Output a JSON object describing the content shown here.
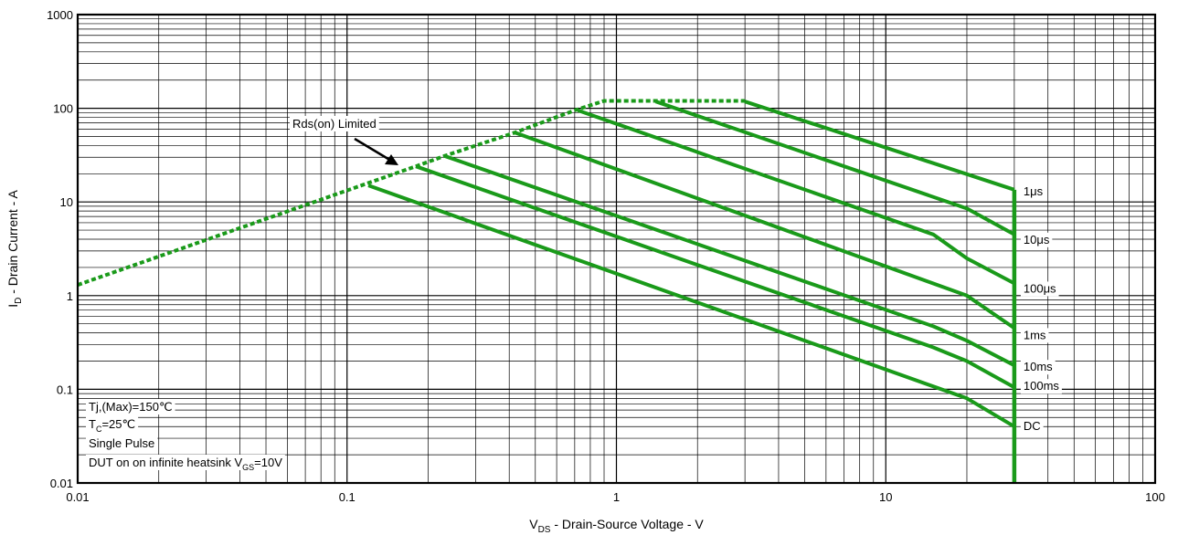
{
  "chart_data": {
    "type": "line",
    "title": "",
    "x_scale": "log",
    "y_scale": "log",
    "xlim": [
      0.01,
      100
    ],
    "ylim": [
      0.01,
      1000
    ],
    "grid": true,
    "x_ticks": [
      "0.01",
      "0.1",
      "1",
      "10",
      "100"
    ],
    "y_ticks": [
      "0.01",
      "0.1",
      "1",
      "10",
      "100",
      "1000"
    ],
    "xlabel": {
      "main": "V",
      "sub": "DS",
      "rest": " - Drain-Source Voltage - V"
    },
    "ylabel": {
      "main": "I",
      "sub": "D",
      "rest": " - Drain Current - A"
    },
    "rds_limit": {
      "label": "Rds(on) Limited",
      "style": "dotted",
      "x": [
        0.01,
        0.18,
        0.23,
        0.42,
        0.7,
        0.9,
        3.0
      ],
      "y": [
        1.3,
        24,
        31,
        55,
        95,
        120,
        120
      ]
    },
    "vds_limit": {
      "x": 30,
      "y": [
        0.01,
        13.5
      ],
      "style": "solid"
    },
    "series": [
      {
        "name": "1μs",
        "x": [
          3.0,
          30
        ],
        "y": [
          118,
          13.5
        ]
      },
      {
        "name": "10μs",
        "x": [
          1.4,
          20,
          30
        ],
        "y": [
          118,
          8.5,
          4.5
        ]
      },
      {
        "name": "100μs",
        "x": [
          0.72,
          15,
          20,
          30
        ],
        "y": [
          95,
          4.5,
          2.5,
          1.35
        ]
      },
      {
        "name": "1ms",
        "x": [
          0.42,
          20,
          30
        ],
        "y": [
          55,
          1.0,
          0.45
        ]
      },
      {
        "name": "10ms",
        "x": [
          0.23,
          15,
          20,
          30
        ],
        "y": [
          31,
          0.47,
          0.33,
          0.18
        ]
      },
      {
        "name": "100ms",
        "x": [
          0.18,
          15,
          20,
          30
        ],
        "y": [
          24,
          0.28,
          0.2,
          0.105
        ]
      },
      {
        "name": "DC",
        "x": [
          0.12,
          20,
          30
        ],
        "y": [
          15,
          0.08,
          0.04
        ]
      }
    ],
    "line_color": "#1a9a1a",
    "annotations": [
      {
        "text": "Tj,(Max)=150℃"
      },
      {
        "main": "T",
        "sub": "C",
        "rest": "=25℃"
      },
      {
        "text": "Single Pulse"
      },
      {
        "main": "DUT on on infinite heatsink V",
        "sub": "GS",
        "rest": "=10V"
      }
    ]
  }
}
